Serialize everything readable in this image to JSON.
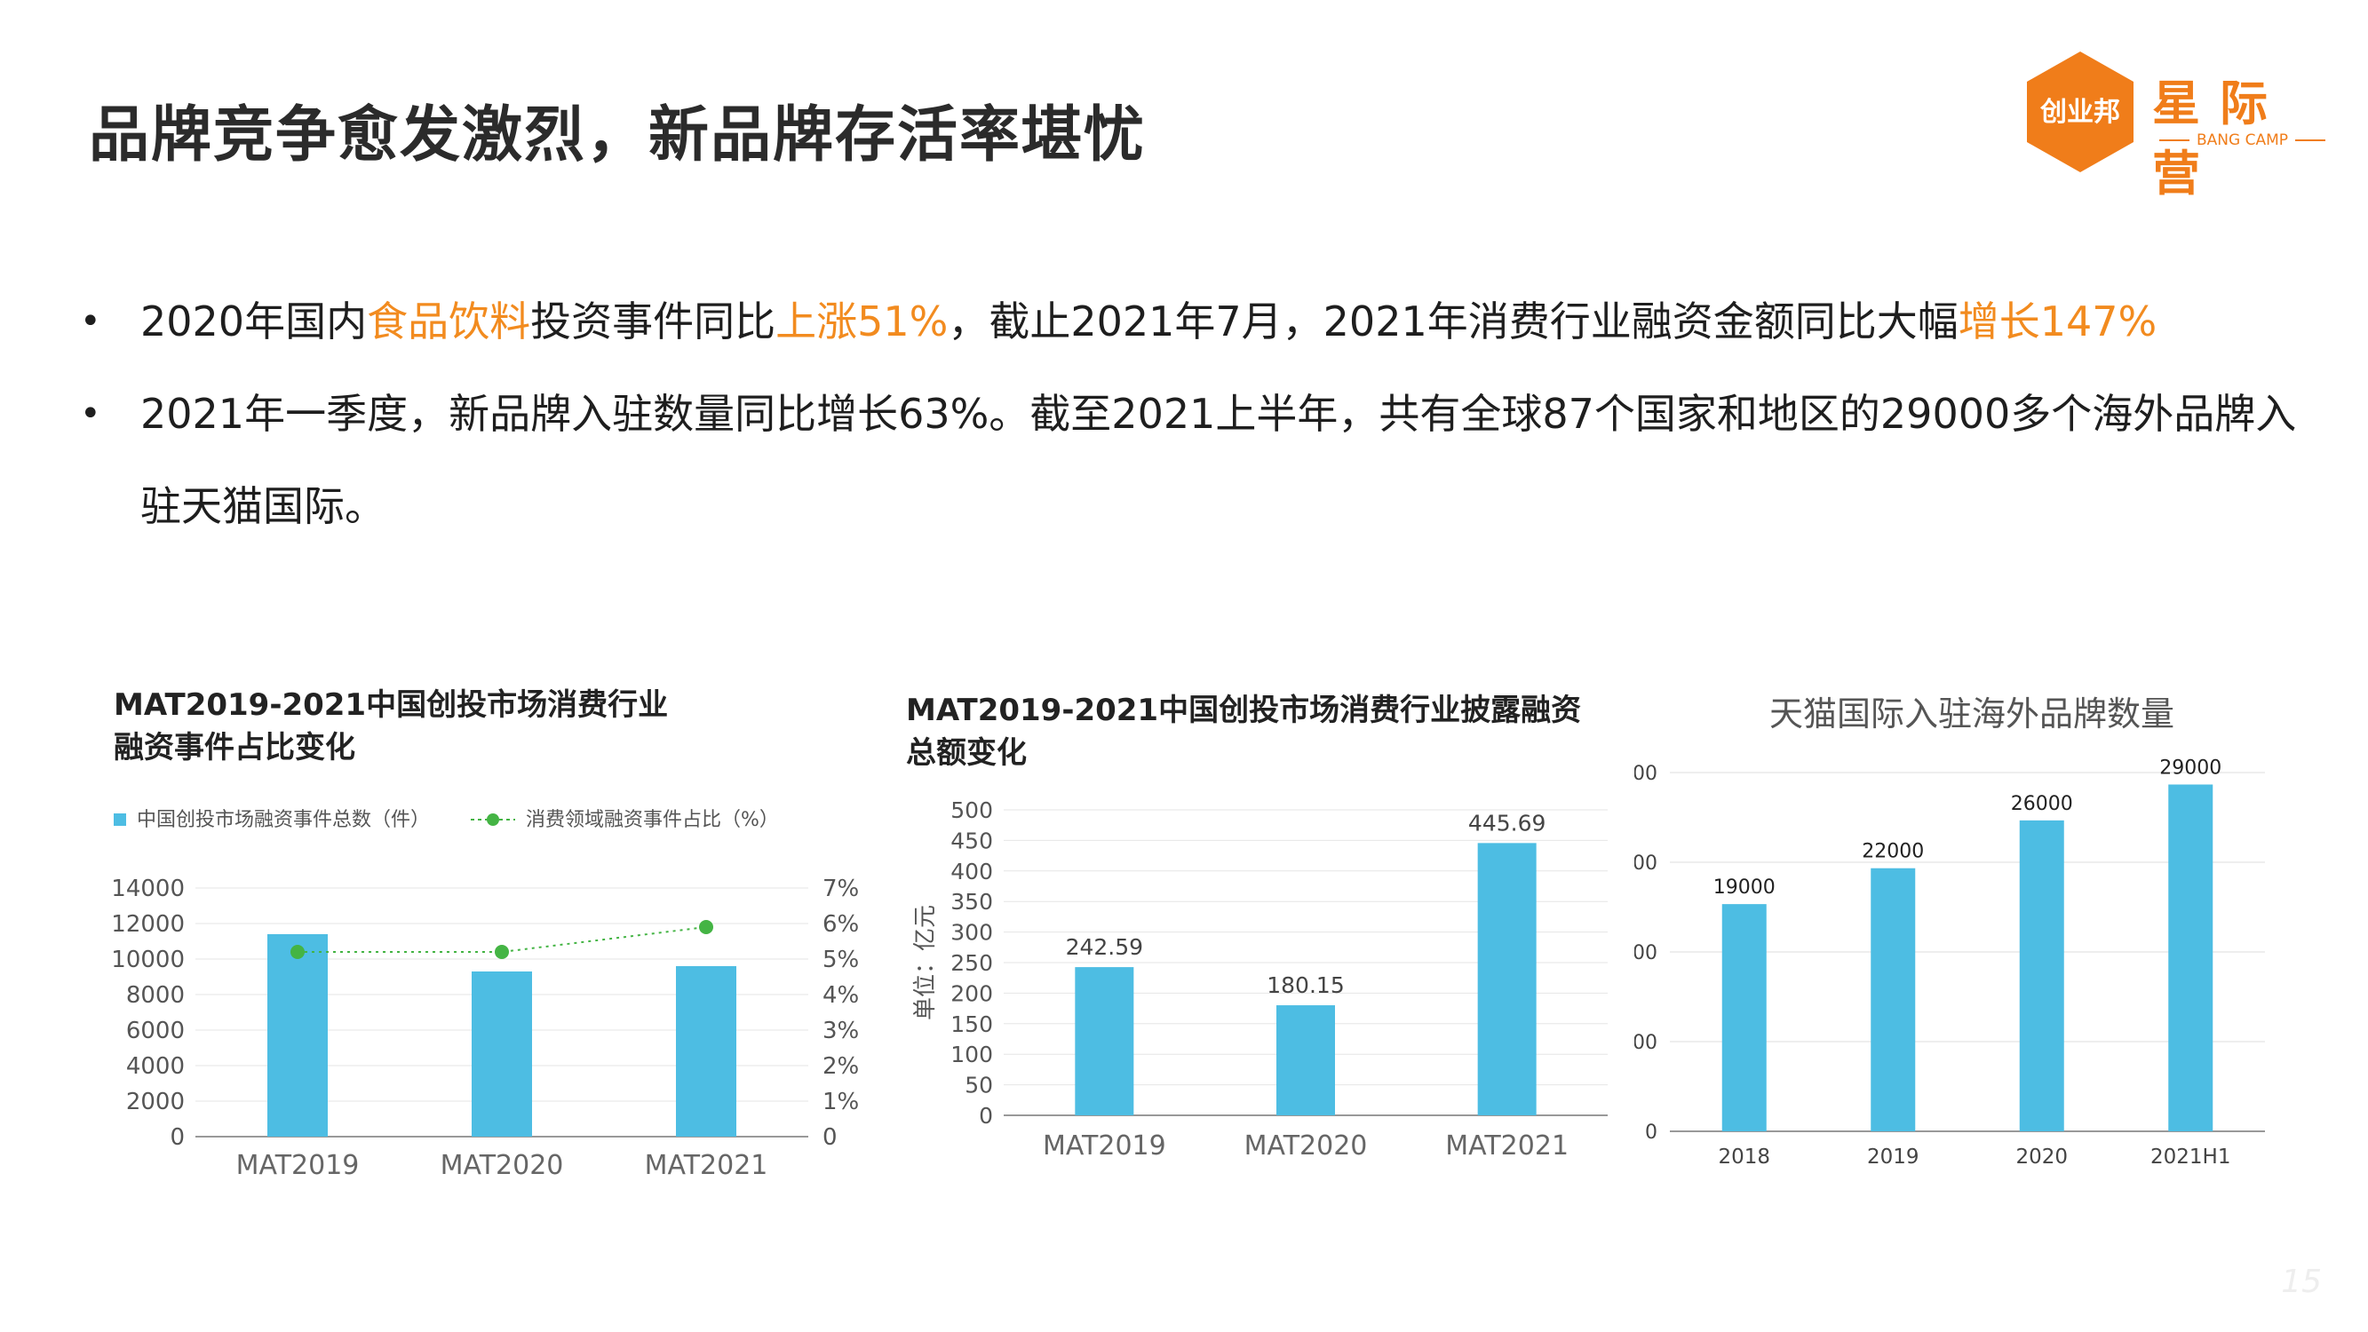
{
  "title": "品牌竞争愈发激烈，新品牌存活率堪忧",
  "logo": {
    "badge_text": "创业邦",
    "cn_text": "星际营",
    "en_text": "BANG CAMP",
    "color": "#f07d1a"
  },
  "bullets": [
    {
      "segments": [
        {
          "text": "2020年国内",
          "highlight": false
        },
        {
          "text": "食品饮料",
          "highlight": true
        },
        {
          "text": "投资事件同比",
          "highlight": false
        },
        {
          "text": "上涨51%",
          "highlight": true
        },
        {
          "text": "，截止2021年7月，2021年消费行业融资金额同比大幅",
          "highlight": false
        },
        {
          "text": "增长147%",
          "highlight": true
        }
      ]
    },
    {
      "segments": [
        {
          "text": "2021年一季度，新品牌入驻数量同比增长63%。截至2021上半年，共有全球87个国家和地区的29000多个海外品牌入驻天猫国际。",
          "highlight": false
        }
      ]
    }
  ],
  "colors": {
    "bar": "#4dbde3",
    "highlight": "#f28b1f",
    "line": "#44b444"
  },
  "chart_data": [
    {
      "type": "bar",
      "title_line1": "MAT2019-2021中国创投市场消费行业",
      "title_line2": "融资事件占比变化",
      "categories": [
        "MAT2019",
        "MAT2020",
        "MAT2021"
      ],
      "series": [
        {
          "name": "中国创投市场融资事件总数（件）",
          "type": "bar",
          "axis": "left",
          "values": [
            11400,
            9300,
            9600
          ]
        },
        {
          "name": "消费领域融资事件占比（%）",
          "type": "line",
          "axis": "right",
          "values": [
            5.2,
            5.2,
            5.9
          ]
        }
      ],
      "ylim": [
        0,
        14000
      ],
      "y_ticks": [
        "0",
        "2000",
        "4000",
        "6000",
        "8000",
        "10000",
        "12000",
        "14000"
      ],
      "y2lim": [
        0,
        7
      ],
      "y2_ticks": [
        "0",
        "1%",
        "2%",
        "3%",
        "4%",
        "5%",
        "6%",
        "7%"
      ],
      "legend": "top-left",
      "grid": true
    },
    {
      "type": "bar",
      "title_line1": "MAT2019-2021中国创投市场消费行业披露融资",
      "title_line2": "总额变化",
      "categories": [
        "MAT2019",
        "MAT2020",
        "MAT2021"
      ],
      "values": [
        242.59,
        180.15,
        445.69
      ],
      "value_labels": [
        "242.59",
        "180.15",
        "445.69"
      ],
      "ylabel": "单位：亿元",
      "ylim": [
        0,
        500
      ],
      "y_ticks": [
        "0",
        "50",
        "100",
        "150",
        "200",
        "250",
        "300",
        "350",
        "400",
        "450",
        "500"
      ],
      "grid": true
    },
    {
      "type": "bar",
      "title": "天猫国际入驻海外品牌数量",
      "categories": [
        "2018",
        "2019",
        "2020",
        "2021H1"
      ],
      "values": [
        19000,
        22000,
        26000,
        29000
      ],
      "value_labels": [
        "19000",
        "22000",
        "26000",
        "29000"
      ],
      "ylim": [
        0,
        30000
      ],
      "y_ticks": [
        "0",
        "00",
        "00",
        "00",
        "00"
      ],
      "grid": true
    }
  ],
  "page_number": "15"
}
